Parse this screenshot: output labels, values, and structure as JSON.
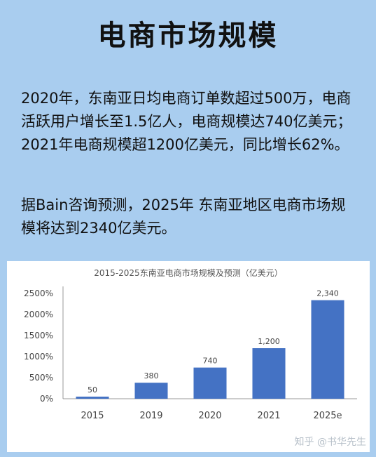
{
  "header": {
    "title": "电商市场规模"
  },
  "text": {
    "paragraph1": "2020年，东南亚日均电商订单数超过500万，电商活跃用户增长至1.5亿人，电商规模达740亿美元；2021年电商规模超1200亿美元，同比增长62%。",
    "paragraph2": "据Bain咨询预测，2025年 东南亚地区电商市场规模将达到2340亿美元。"
  },
  "watermark": "知乎 @书华先生",
  "chart_data": {
    "type": "bar",
    "title": "2015-2025东南亚电商市场规模及预测（亿美元）",
    "categories": [
      "2015",
      "2019",
      "2020",
      "2021",
      "2025e"
    ],
    "values": [
      50,
      380,
      740,
      1200,
      2340
    ],
    "data_labels": [
      "50",
      "380",
      "740",
      "1,200",
      "2,340"
    ],
    "y_ticks": [
      0,
      500,
      1000,
      1500,
      2000,
      2500
    ],
    "y_tick_labels": [
      "0%",
      "500%",
      "1000%",
      "1500%",
      "2000%",
      "2500%"
    ],
    "ylim": [
      0,
      2600
    ],
    "grid": false,
    "colors": {
      "bar": "#4472c4",
      "text": "#444444",
      "axis": "#999999"
    }
  }
}
